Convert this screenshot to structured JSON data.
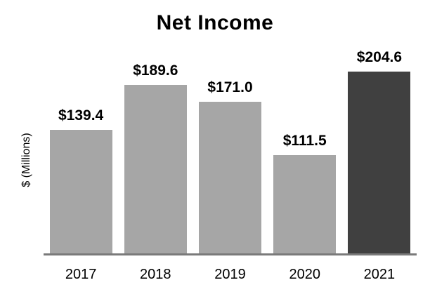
{
  "chart_data": {
    "type": "bar",
    "title": "Net Income",
    "xlabel": "",
    "ylabel": "$ (Millions)",
    "categories": [
      "2017",
      "2018",
      "2019",
      "2020",
      "2021"
    ],
    "values": [
      139.4,
      189.6,
      171.0,
      111.5,
      204.6
    ],
    "value_labels": [
      "$139.4",
      "$189.6",
      "$171.0",
      "$111.5",
      "$204.6"
    ],
    "ylim": [
      0,
      237.5
    ],
    "grid": false,
    "legend": false,
    "value_labels_position": "above-bars",
    "highlighted_category": "2021",
    "colors": {
      "bar_default": "#A6A6A6",
      "bar_highlight": "#404040",
      "axis_line": "#7A7A7A",
      "text": "#000000",
      "background": "#FFFFFF"
    }
  }
}
